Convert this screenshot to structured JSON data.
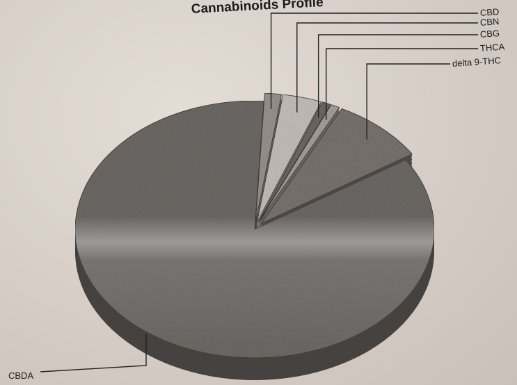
{
  "chart_data": {
    "type": "pie",
    "title": "Cannabinoids Profile",
    "categories": [
      "CBD",
      "CBN",
      "CBG",
      "THCA",
      "delta 9-THC",
      "CBDA"
    ],
    "values": [
      1.5,
      3.5,
      0.8,
      0.8,
      8.5,
      84.9
    ],
    "colors": {
      "CBD": "#9a9590",
      "CBN": "#c8c2bc",
      "CBG": "#6e6a66",
      "THCA": "#a8a29c",
      "delta 9-THC": "#7a7570",
      "CBDA": "#6f6b67"
    },
    "legend": "none",
    "labels_with_leader_lines": true
  }
}
